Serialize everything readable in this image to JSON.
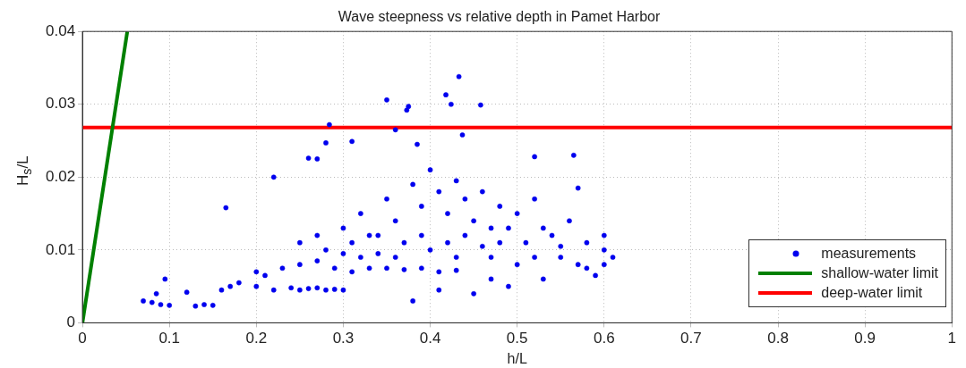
{
  "chart_data": {
    "type": "scatter",
    "title": "Wave steepness vs relative depth in Pamet Harbor",
    "xlabel": "h/L",
    "ylabel": "H$_{s}$/L",
    "xlim": [
      0,
      1
    ],
    "xticks": [
      0,
      0.1,
      0.2,
      0.3,
      0.4,
      0.5,
      0.6,
      0.7,
      0.8,
      0.9,
      1
    ],
    "ylim": [
      0,
      0.04
    ],
    "yticks": [
      0,
      0.01,
      0.02,
      0.03,
      0.04
    ],
    "grid": true,
    "legend": "bottom right",
    "series": [
      {
        "name": "measurements",
        "color": "#0000ee",
        "marker": "circle",
        "x": [
          0.35,
          0.375,
          0.373,
          0.418,
          0.424,
          0.433,
          0.458,
          0.284,
          0.36,
          0.28,
          0.31,
          0.22,
          0.165,
          0.27,
          0.26,
          0.437,
          0.385,
          0.52,
          0.565,
          0.57,
          0.07,
          0.08,
          0.085,
          0.09,
          0.095,
          0.1,
          0.12,
          0.13,
          0.14,
          0.15,
          0.16,
          0.17,
          0.18,
          0.2,
          0.21,
          0.22,
          0.24,
          0.25,
          0.26,
          0.27,
          0.28,
          0.29,
          0.3,
          0.2,
          0.23,
          0.25,
          0.27,
          0.29,
          0.31,
          0.33,
          0.35,
          0.37,
          0.39,
          0.41,
          0.43,
          0.25,
          0.27,
          0.3,
          0.32,
          0.34,
          0.35,
          0.36,
          0.38,
          0.39,
          0.4,
          0.41,
          0.42,
          0.43,
          0.44,
          0.45,
          0.46,
          0.47,
          0.48,
          0.5,
          0.52,
          0.54,
          0.56,
          0.58,
          0.6,
          0.61,
          0.6,
          0.58,
          0.55,
          0.53,
          0.5,
          0.49,
          0.47,
          0.45,
          0.41,
          0.38,
          0.4,
          0.42,
          0.44,
          0.46,
          0.48,
          0.36,
          0.34,
          0.32,
          0.3,
          0.28,
          0.57,
          0.59,
          0.6,
          0.51,
          0.53,
          0.55,
          0.43,
          0.39,
          0.37,
          0.33,
          0.31,
          0.52,
          0.49,
          0.47
        ],
        "values": [
          0.0306,
          0.0297,
          0.0292,
          0.0313,
          0.03,
          0.0338,
          0.0299,
          0.0272,
          0.0265,
          0.0247,
          0.0249,
          0.02,
          0.0158,
          0.0225,
          0.0226,
          0.0258,
          0.0245,
          0.0228,
          0.023,
          0.0185,
          0.003,
          0.0028,
          0.004,
          0.0025,
          0.006,
          0.0024,
          0.0042,
          0.0023,
          0.0025,
          0.0024,
          0.0045,
          0.005,
          0.0055,
          0.005,
          0.0065,
          0.0045,
          0.0048,
          0.0045,
          0.0047,
          0.0048,
          0.0045,
          0.0046,
          0.0045,
          0.007,
          0.0075,
          0.008,
          0.0085,
          0.0075,
          0.007,
          0.0075,
          0.0075,
          0.0073,
          0.0075,
          0.007,
          0.0072,
          0.011,
          0.012,
          0.013,
          0.015,
          0.012,
          0.017,
          0.014,
          0.019,
          0.016,
          0.021,
          0.018,
          0.015,
          0.0195,
          0.017,
          0.014,
          0.018,
          0.013,
          0.016,
          0.015,
          0.017,
          0.012,
          0.014,
          0.011,
          0.01,
          0.009,
          0.012,
          0.0075,
          0.009,
          0.006,
          0.008,
          0.005,
          0.006,
          0.004,
          0.0045,
          0.003,
          0.01,
          0.011,
          0.012,
          0.0105,
          0.011,
          0.009,
          0.0095,
          0.009,
          0.0095,
          0.01,
          0.008,
          0.0065,
          0.008,
          0.011,
          0.013,
          0.0105,
          0.009,
          0.012,
          0.011,
          0.012,
          0.011,
          0.009,
          0.013,
          0.009
        ]
      },
      {
        "name": "shallow-water limit",
        "type": "line",
        "color": "#008000",
        "marker": "none",
        "x": [
          0,
          0.0516
        ],
        "values": [
          0,
          0.04
        ]
      },
      {
        "name": "deep-water limit",
        "type": "line",
        "color": "#ff0000",
        "marker": "none",
        "x": [
          0,
          1
        ],
        "values": [
          0.0268,
          0.0268
        ]
      }
    ]
  }
}
